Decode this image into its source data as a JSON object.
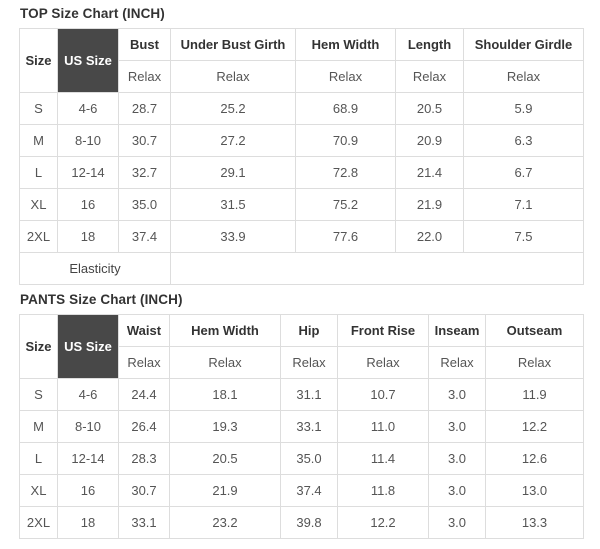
{
  "colors": {
    "dark_header_bg": "#484848",
    "dark_header_text": "#ffffff",
    "border": "#dddddd",
    "title_text": "#333333",
    "header_text": "#333333",
    "cell_text": "#555555"
  },
  "charts": [
    {
      "title": "TOP Size Chart (INCH)",
      "size_header": "Size",
      "us_size_header": "US Size",
      "relax_label": "Relax",
      "columns": [
        "Bust",
        "Under Bust Girth",
        "Hem Width",
        "Length",
        "Shoulder Girdle"
      ],
      "rows": [
        {
          "size": "S",
          "us_size": "4-6",
          "values": [
            "28.7",
            "25.2",
            "68.9",
            "20.5",
            "5.9"
          ]
        },
        {
          "size": "M",
          "us_size": "8-10",
          "values": [
            "30.7",
            "27.2",
            "70.9",
            "20.9",
            "6.3"
          ]
        },
        {
          "size": "L",
          "us_size": "12-14",
          "values": [
            "32.7",
            "29.1",
            "72.8",
            "21.4",
            "6.7"
          ]
        },
        {
          "size": "XL",
          "us_size": "16",
          "values": [
            "35.0",
            "31.5",
            "75.2",
            "21.9",
            "7.1"
          ]
        },
        {
          "size": "2XL",
          "us_size": "18",
          "values": [
            "37.4",
            "33.9",
            "77.6",
            "22.0",
            "7.5"
          ]
        }
      ],
      "footer_label": "Elasticity",
      "footer_span": 3
    },
    {
      "title": "PANTS Size Chart (INCH)",
      "size_header": "Size",
      "us_size_header": "US Size",
      "relax_label": "Relax",
      "columns": [
        "Waist",
        "Hem Width",
        "Hip",
        "Front Rise",
        "Inseam",
        "Outseam"
      ],
      "rows": [
        {
          "size": "S",
          "us_size": "4-6",
          "values": [
            "24.4",
            "18.1",
            "31.1",
            "10.7",
            "3.0",
            "11.9"
          ]
        },
        {
          "size": "M",
          "us_size": "8-10",
          "values": [
            "26.4",
            "19.3",
            "33.1",
            "11.0",
            "3.0",
            "12.2"
          ]
        },
        {
          "size": "L",
          "us_size": "12-14",
          "values": [
            "28.3",
            "20.5",
            "35.0",
            "11.4",
            "3.0",
            "12.6"
          ]
        },
        {
          "size": "XL",
          "us_size": "16",
          "values": [
            "30.7",
            "21.9",
            "37.4",
            "11.8",
            "3.0",
            "13.0"
          ]
        },
        {
          "size": "2XL",
          "us_size": "18",
          "values": [
            "33.1",
            "23.2",
            "39.8",
            "12.2",
            "3.0",
            "13.3"
          ]
        }
      ],
      "footer_label": null,
      "footer_span": 0
    }
  ]
}
